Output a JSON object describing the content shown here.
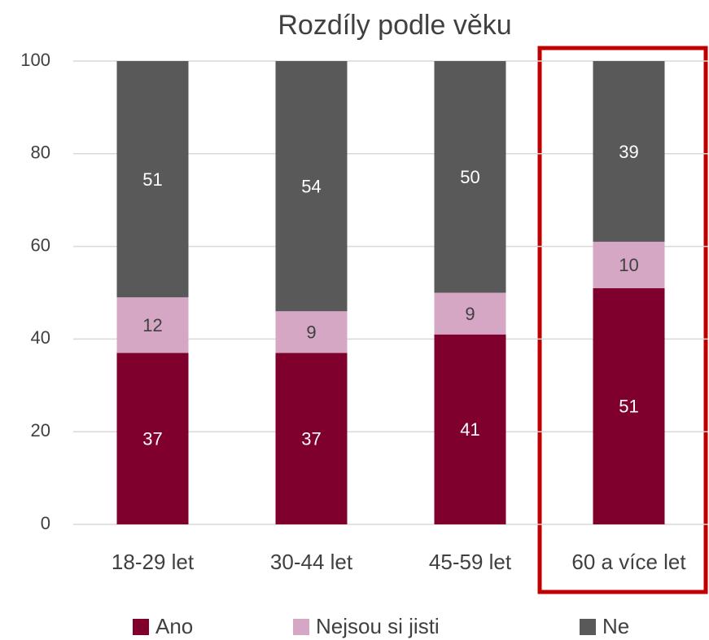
{
  "chart_data": {
    "type": "stacked_bar",
    "title": "Rozdíly podle věku",
    "categories": [
      "18-29 let",
      "30-44 let",
      "45-59 let",
      "60 a více let"
    ],
    "series": [
      {
        "name": "Ano",
        "color": "#80002d",
        "values": [
          37,
          37,
          41,
          51
        ]
      },
      {
        "name": "Nejsou si jisti",
        "color": "#d5a7c5",
        "values": [
          12,
          9,
          9,
          10
        ]
      },
      {
        "name": "Ne",
        "color": "#595959",
        "values": [
          51,
          54,
          50,
          39
        ]
      }
    ],
    "ylim": [
      0,
      100
    ],
    "yticks": [
      0,
      20,
      40,
      60,
      80,
      100
    ],
    "grid": true,
    "legend": "bottom"
  }
}
